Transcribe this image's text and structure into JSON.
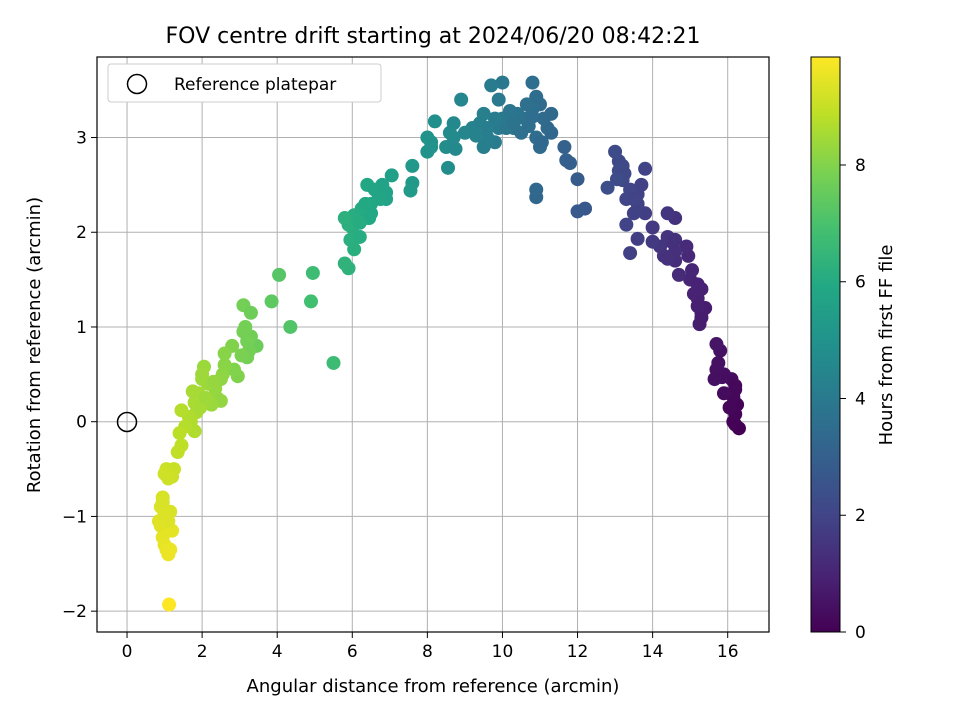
{
  "chart_data": {
    "type": "scatter",
    "title": "FOV centre drift starting at 2024/06/20 08:42:21",
    "xlabel": "Angular distance from reference (arcmin)",
    "ylabel": "Rotation from reference (arcmin)",
    "xlim": [
      -0.8,
      17.1
    ],
    "ylim": [
      -2.22,
      3.85
    ],
    "xticks": [
      0,
      2,
      4,
      6,
      8,
      10,
      12,
      14,
      16
    ],
    "yticks": [
      -2,
      -1,
      0,
      1,
      2,
      3
    ],
    "xtick_labels": [
      "0",
      "2",
      "4",
      "6",
      "8",
      "10",
      "12",
      "14",
      "16"
    ],
    "ytick_labels": [
      "−2",
      "−1",
      "0",
      "1",
      "2",
      "3"
    ],
    "grid": true,
    "legend": {
      "placement": "top-left",
      "entries": [
        "Reference platepar"
      ]
    },
    "reference_point": {
      "x": 0,
      "y": 0,
      "label": "Reference platepar"
    },
    "colorbar": {
      "label": "Hours from first FF file",
      "colormap": "viridis",
      "range": [
        0,
        9.85
      ],
      "ticks": [
        0,
        2,
        4,
        6,
        8
      ],
      "tick_labels": [
        "0",
        "2",
        "4",
        "6",
        "8"
      ]
    },
    "series": [
      {
        "columns": [
          "x",
          "y",
          "hours"
        ],
        "points": [
          [
            16.3,
            -0.07
          ],
          [
            16.2,
            -0.03
          ],
          [
            16.15,
            0.0
          ],
          [
            16.2,
            0.08
          ],
          [
            16.25,
            0.18
          ],
          [
            16.15,
            0.26
          ],
          [
            16.2,
            0.34
          ],
          [
            16.1,
            0.45
          ],
          [
            16.05,
            0.15
          ],
          [
            16.2,
            0.38
          ],
          [
            15.9,
            0.5
          ],
          [
            15.7,
            0.55
          ],
          [
            15.8,
            0.75
          ],
          [
            15.7,
            0.82
          ],
          [
            15.75,
            0.62
          ],
          [
            15.85,
            0.47
          ],
          [
            15.9,
            0.3
          ],
          [
            15.65,
            0.45
          ],
          [
            15.3,
            1.1
          ],
          [
            15.3,
            1.15
          ],
          [
            15.4,
            1.2
          ],
          [
            15.2,
            1.3
          ],
          [
            15.3,
            1.4
          ],
          [
            15.1,
            1.35
          ],
          [
            15.2,
            1.22
          ],
          [
            15.25,
            1.03
          ],
          [
            15.0,
            1.5
          ],
          [
            15.05,
            1.6
          ],
          [
            15.2,
            1.45
          ],
          [
            14.95,
            1.75
          ],
          [
            14.9,
            1.85
          ],
          [
            14.7,
            1.55
          ],
          [
            14.6,
            1.7
          ],
          [
            14.5,
            1.9
          ],
          [
            14.6,
            1.8
          ],
          [
            14.2,
            1.85
          ],
          [
            14.0,
            1.9
          ],
          [
            14.3,
            1.75
          ],
          [
            14.4,
            1.95
          ],
          [
            14.6,
            2.15
          ],
          [
            14.4,
            2.2
          ],
          [
            14.6,
            1.92
          ],
          [
            14.4,
            1.72
          ],
          [
            14.0,
            2.05
          ],
          [
            13.8,
            2.2
          ],
          [
            13.6,
            1.93
          ],
          [
            13.4,
            1.78
          ],
          [
            13.3,
            2.08
          ],
          [
            13.6,
            2.3
          ],
          [
            13.5,
            2.2
          ],
          [
            13.7,
            2.5
          ],
          [
            13.6,
            2.4
          ],
          [
            13.3,
            2.35
          ],
          [
            13.2,
            2.55
          ],
          [
            13.1,
            2.75
          ],
          [
            13.15,
            2.6
          ],
          [
            13.2,
            2.7
          ],
          [
            13.1,
            2.65
          ],
          [
            13.0,
            2.85
          ],
          [
            13.4,
            2.45
          ],
          [
            12.8,
            2.47
          ],
          [
            13.25,
            2.62
          ],
          [
            13.05,
            2.56
          ],
          [
            13.8,
            2.67
          ],
          [
            13.5,
            2.35
          ],
          [
            12.2,
            2.25
          ],
          [
            12.0,
            2.22
          ],
          [
            12.0,
            2.56
          ],
          [
            11.7,
            2.76
          ],
          [
            11.8,
            2.73
          ],
          [
            11.65,
            2.9
          ],
          [
            11.3,
            3.05
          ],
          [
            10.9,
            2.37
          ],
          [
            10.9,
            2.45
          ],
          [
            11.0,
            2.9
          ],
          [
            11.2,
            3.1
          ],
          [
            11.3,
            3.25
          ],
          [
            11.0,
            3.35
          ],
          [
            10.9,
            3.43
          ],
          [
            10.8,
            3.58
          ],
          [
            10.0,
            3.58
          ],
          [
            9.7,
            3.55
          ],
          [
            10.8,
            3.3
          ],
          [
            10.9,
            3.0
          ],
          [
            11.1,
            3.2
          ],
          [
            10.6,
            3.2
          ],
          [
            10.4,
            3.25
          ],
          [
            10.3,
            3.1
          ],
          [
            10.0,
            3.2
          ],
          [
            9.8,
            2.95
          ],
          [
            9.9,
            3.1
          ],
          [
            9.6,
            3.0
          ],
          [
            9.5,
            2.9
          ],
          [
            9.8,
            3.2
          ],
          [
            9.9,
            3.4
          ],
          [
            10.2,
            3.28
          ],
          [
            10.5,
            3.05
          ],
          [
            10.7,
            3.12
          ],
          [
            10.65,
            3.35
          ],
          [
            10.1,
            3.1
          ],
          [
            10.3,
            3.15
          ],
          [
            10.8,
            3.22
          ],
          [
            11.05,
            2.95
          ],
          [
            9.5,
            3.25
          ],
          [
            9.2,
            3.1
          ],
          [
            9.0,
            3.05
          ],
          [
            8.9,
            3.4
          ],
          [
            8.7,
            3.15
          ],
          [
            8.5,
            2.9
          ],
          [
            8.7,
            3.0
          ],
          [
            9.4,
            3.15
          ],
          [
            8.2,
            3.17
          ],
          [
            8.0,
            2.85
          ],
          [
            8.1,
            2.95
          ],
          [
            8.0,
            3.0
          ],
          [
            8.1,
            2.9
          ],
          [
            8.55,
            2.68
          ],
          [
            8.6,
            3.05
          ],
          [
            8.75,
            2.88
          ],
          [
            9.3,
            3.02
          ],
          [
            9.6,
            3.1
          ],
          [
            7.6,
            2.52
          ],
          [
            7.55,
            2.44
          ],
          [
            7.6,
            2.7
          ],
          [
            7.05,
            2.6
          ],
          [
            6.8,
            2.5
          ],
          [
            6.9,
            2.35
          ],
          [
            6.7,
            2.4
          ],
          [
            6.5,
            2.3
          ],
          [
            6.4,
            2.5
          ],
          [
            6.6,
            2.45
          ],
          [
            6.9,
            2.42
          ],
          [
            6.75,
            2.35
          ],
          [
            6.5,
            2.2
          ],
          [
            6.35,
            2.15
          ],
          [
            6.1,
            2.1
          ],
          [
            6.0,
            2.05
          ],
          [
            5.9,
            2.08
          ],
          [
            6.05,
            2.18
          ],
          [
            6.25,
            2.25
          ],
          [
            6.45,
            2.15
          ],
          [
            5.8,
            2.15
          ],
          [
            5.95,
            1.92
          ],
          [
            6.2,
            1.95
          ],
          [
            6.05,
            1.82
          ],
          [
            6.2,
            2.1
          ],
          [
            6.35,
            2.3
          ],
          [
            5.9,
            1.62
          ],
          [
            5.8,
            1.67
          ],
          [
            5.5,
            0.62
          ],
          [
            4.9,
            1.27
          ],
          [
            4.95,
            1.57
          ],
          [
            4.05,
            1.55
          ],
          [
            3.85,
            1.27
          ],
          [
            4.35,
            1.0
          ],
          [
            3.1,
            1.23
          ],
          [
            3.45,
            0.8
          ],
          [
            3.3,
            0.9
          ],
          [
            3.2,
            0.85
          ],
          [
            3.1,
            0.95
          ],
          [
            3.15,
            1.0
          ],
          [
            3.25,
            0.75
          ],
          [
            3.2,
            0.68
          ],
          [
            3.05,
            0.7
          ],
          [
            3.3,
            1.15
          ],
          [
            2.95,
            0.48
          ],
          [
            2.85,
            0.55
          ],
          [
            2.8,
            0.8
          ],
          [
            2.6,
            0.6
          ],
          [
            2.55,
            0.5
          ],
          [
            2.5,
            0.45
          ],
          [
            2.35,
            0.35
          ],
          [
            2.4,
            0.25
          ],
          [
            2.5,
            0.22
          ],
          [
            2.25,
            0.18
          ],
          [
            2.15,
            0.4
          ],
          [
            2.0,
            0.45
          ],
          [
            2.05,
            0.58
          ],
          [
            2.0,
            0.5
          ],
          [
            1.9,
            0.3
          ],
          [
            1.8,
            0.2
          ],
          [
            1.85,
            0.1
          ],
          [
            1.95,
            0.15
          ],
          [
            1.7,
            0.0
          ],
          [
            1.8,
            -0.1
          ],
          [
            1.65,
            0.05
          ],
          [
            1.55,
            -0.05
          ],
          [
            1.75,
            0.32
          ],
          [
            1.45,
            0.12
          ],
          [
            1.4,
            -0.12
          ],
          [
            1.45,
            -0.25
          ],
          [
            1.35,
            -0.32
          ],
          [
            2.1,
            0.25
          ],
          [
            2.3,
            0.42
          ],
          [
            2.6,
            0.72
          ],
          [
            1.05,
            -0.5
          ],
          [
            1.25,
            -0.5
          ],
          [
            1.2,
            -0.58
          ],
          [
            1.0,
            -0.55
          ],
          [
            1.1,
            -0.6
          ],
          [
            0.95,
            -0.8
          ],
          [
            0.85,
            -1.05
          ],
          [
            0.9,
            -1.1
          ],
          [
            0.95,
            -1.22
          ],
          [
            1.0,
            -1.3
          ],
          [
            1.05,
            -1.35
          ],
          [
            1.15,
            -1.35
          ],
          [
            1.1,
            -1.4
          ],
          [
            1.2,
            -1.15
          ],
          [
            1.15,
            -0.95
          ],
          [
            1.0,
            -0.98
          ],
          [
            0.9,
            -0.9
          ],
          [
            0.95,
            -0.85
          ],
          [
            1.1,
            -1.05
          ],
          [
            1.12,
            -1.93
          ]
        ]
      }
    ]
  }
}
